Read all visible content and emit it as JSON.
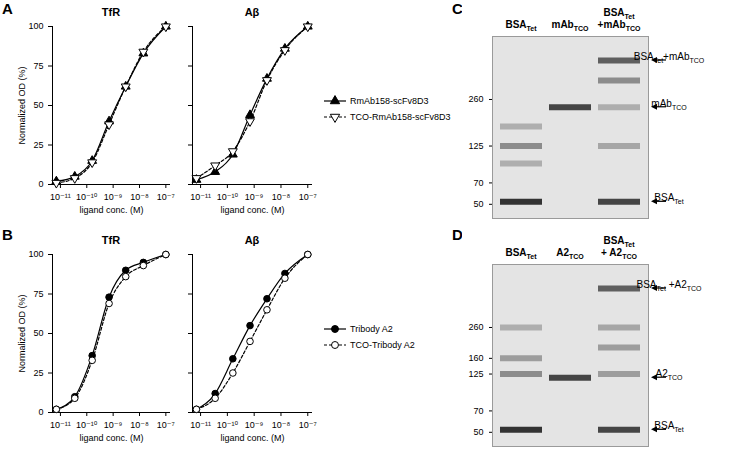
{
  "panel_labels": [
    "A",
    "B",
    "C",
    "D"
  ],
  "chart_data": [
    {
      "type": "line",
      "title": "TfR",
      "x_label": "ligand conc. (M)",
      "y_label": "Normalized OD (%)",
      "log": "x",
      "xlim": [
        5e-12,
        1.5e-07
      ],
      "xticks": [
        {
          "value": 1e-11,
          "label": "10⁻¹¹"
        },
        {
          "value": 1e-10,
          "label": "10⁻¹⁰"
        },
        {
          "value": 1e-09,
          "label": "10⁻⁹"
        },
        {
          "value": 1e-08,
          "label": "10⁻⁸"
        },
        {
          "value": 1e-07,
          "label": "10⁻⁷"
        }
      ],
      "ylim": [
        0,
        100
      ],
      "yticks": [
        0,
        25,
        50,
        75,
        100
      ],
      "grid": false,
      "legend": false,
      "x": [
        7e-12,
        3.5e-11,
        1.6e-10,
        7e-10,
        3e-09,
        1.4e-08,
        1e-07
      ],
      "series": [
        {
          "name": "RmAb158-scFv8D3",
          "color": "#000000",
          "marker": "filled-triangle",
          "line_style": "solid",
          "values": [
            2,
            5,
            15,
            40,
            62,
            83,
            100
          ]
        },
        {
          "name": "TCO-RmAb158-scFv8D3",
          "color": "#000000",
          "marker": "open-triangle-down",
          "line_style": "dashed",
          "values": [
            1,
            4,
            14,
            38,
            62,
            84,
            100
          ]
        }
      ]
    },
    {
      "type": "line",
      "title": "Aβ",
      "x_label": "ligand conc. (M)",
      "log": "x",
      "xlim": [
        5e-12,
        1.5e-07
      ],
      "xticks": [
        {
          "value": 1e-11,
          "label": "10⁻¹¹"
        },
        {
          "value": 1e-10,
          "label": "10⁻¹⁰"
        },
        {
          "value": 1e-09,
          "label": "10⁻⁹"
        },
        {
          "value": 1e-08,
          "label": "10⁻⁸"
        },
        {
          "value": 1e-07,
          "label": "10⁻⁷"
        }
      ],
      "ylim": [
        0,
        100
      ],
      "yticks": [
        0,
        25,
        50,
        75,
        100
      ],
      "grid": false,
      "legend": "right",
      "tick_labels": "x",
      "x": [
        7e-12,
        3.5e-11,
        1.6e-10,
        7e-10,
        3e-09,
        1.4e-08,
        1e-07
      ],
      "series": [
        {
          "name": "RmAb158-scFv8D3",
          "color": "#000000",
          "marker": "filled-triangle",
          "line_style": "solid",
          "values": [
            3,
            8,
            19,
            44,
            67,
            86,
            100
          ]
        },
        {
          "name": "TCO-RmAb158-scFv8D3",
          "color": "#000000",
          "marker": "open-triangle-down",
          "line_style": "dashed",
          "values": [
            4,
            12,
            21,
            40,
            66,
            85,
            100
          ]
        }
      ]
    },
    {
      "type": "line",
      "title": "TfR",
      "x_label": "ligand conc. (M)",
      "y_label": "Normalized OD (%)",
      "log": "x",
      "xlim": [
        5e-12,
        1.5e-07
      ],
      "xticks": [
        {
          "value": 1e-11,
          "label": "10⁻¹¹"
        },
        {
          "value": 1e-10,
          "label": "10⁻¹⁰"
        },
        {
          "value": 1e-09,
          "label": "10⁻⁹"
        },
        {
          "value": 1e-08,
          "label": "10⁻⁸"
        },
        {
          "value": 1e-07,
          "label": "10⁻⁷"
        }
      ],
      "ylim": [
        0,
        100
      ],
      "yticks": [
        0,
        25,
        50,
        75,
        100
      ],
      "grid": false,
      "legend": false,
      "x": [
        7e-12,
        3.5e-11,
        1.6e-10,
        7e-10,
        3e-09,
        1.4e-08,
        1e-07
      ],
      "series": [
        {
          "name": "Tribody A2",
          "color": "#000000",
          "marker": "filled-circle",
          "line_style": "solid",
          "values": [
            2,
            10,
            36,
            73,
            90,
            95,
            100
          ]
        },
        {
          "name": "TCO-Tribody A2",
          "color": "#000000",
          "marker": "open-circle",
          "line_style": "dashed",
          "values": [
            2,
            9,
            33,
            69,
            86,
            93,
            100
          ]
        }
      ]
    },
    {
      "type": "line",
      "title": "Aβ",
      "x_label": "ligand conc. (M)",
      "log": "x",
      "xlim": [
        5e-12,
        1.5e-07
      ],
      "xticks": [
        {
          "value": 1e-11,
          "label": "10⁻¹¹"
        },
        {
          "value": 1e-10,
          "label": "10⁻¹⁰"
        },
        {
          "value": 1e-09,
          "label": "10⁻⁹"
        },
        {
          "value": 1e-08,
          "label": "10⁻⁸"
        },
        {
          "value": 1e-07,
          "label": "10⁻⁷"
        }
      ],
      "ylim": [
        0,
        100
      ],
      "yticks": [
        0,
        25,
        50,
        75,
        100
      ],
      "grid": false,
      "legend": "right",
      "tick_labels": "x",
      "x": [
        7e-12,
        3.5e-11,
        1.6e-10,
        7e-10,
        3e-09,
        1.4e-08,
        1e-07
      ],
      "series": [
        {
          "name": "Tribody A2",
          "color": "#000000",
          "marker": "filled-circle",
          "line_style": "solid",
          "values": [
            2,
            12,
            34,
            55,
            72,
            88,
            100
          ]
        },
        {
          "name": "TCO-Tribody A2",
          "color": "#000000",
          "marker": "open-circle",
          "line_style": "dashed",
          "values": [
            2,
            9,
            25,
            45,
            65,
            85,
            100
          ]
        }
      ]
    },
    {
      "type": "gel",
      "log": "y",
      "ylim": [
        40,
        700
      ],
      "yticks": [
        260,
        125,
        70,
        50
      ],
      "color": "#333333",
      "categories": [
        [
          [
            {
              "text": "BSA"
            },
            {
              "sub": "Tet"
            }
          ]
        ],
        [
          [
            {
              "text": "mAb"
            },
            {
              "sub": "TCO"
            }
          ]
        ],
        [
          [
            {
              "text": "BSA"
            },
            {
              "sub": "Tet"
            }
          ],
          [
            {
              "text": "+mAb"
            },
            {
              "sub": "TCO"
            }
          ]
        ]
      ],
      "bands": [
        {
          "lane": 0,
          "kda": 52,
          "strength": 1
        },
        {
          "lane": 0,
          "kda": 95,
          "strength": 0.3
        },
        {
          "lane": 0,
          "kda": 125,
          "strength": 0.5
        },
        {
          "lane": 0,
          "kda": 170,
          "strength": 0.3
        },
        {
          "lane": 1,
          "kda": 230,
          "strength": 0.9
        },
        {
          "lane": 2,
          "kda": 52,
          "strength": 0.9
        },
        {
          "lane": 2,
          "kda": 125,
          "strength": 0.35
        },
        {
          "lane": 2,
          "kda": 230,
          "strength": 0.3
        },
        {
          "lane": 2,
          "kda": 350,
          "strength": 0.5
        },
        {
          "lane": 2,
          "kda": 480,
          "strength": 0.75
        }
      ],
      "annotations": [
        {
          "kda": 480,
          "text": [
            {
              "text": "BSA"
            },
            {
              "sub": "Tet"
            },
            {
              "text": "+mAb"
            },
            {
              "sub": "TCO"
            }
          ]
        },
        {
          "kda": 230,
          "text": [
            {
              "text": "mAb"
            },
            {
              "sub": "TCO"
            }
          ]
        },
        {
          "kda": 52,
          "text": [
            {
              "text": "BSA"
            },
            {
              "sub": "Tet"
            }
          ]
        }
      ]
    },
    {
      "type": "gel",
      "log": "y",
      "ylim": [
        40,
        700
      ],
      "yticks": [
        260,
        160,
        125,
        70,
        50
      ],
      "color": "#333333",
      "categories": [
        [
          [
            {
              "text": "BSA"
            },
            {
              "sub": "Tet"
            }
          ]
        ],
        [
          [
            {
              "text": "A2"
            },
            {
              "sub": "TCO"
            }
          ]
        ],
        [
          [
            {
              "text": "BSA"
            },
            {
              "sub": "Tet"
            }
          ],
          [
            {
              "text": "+ A2"
            },
            {
              "sub": "TCO"
            }
          ]
        ]
      ],
      "bands": [
        {
          "lane": 0,
          "kda": 52,
          "strength": 1
        },
        {
          "lane": 0,
          "kda": 125,
          "strength": 0.5
        },
        {
          "lane": 0,
          "kda": 160,
          "strength": 0.4
        },
        {
          "lane": 0,
          "kda": 260,
          "strength": 0.3
        },
        {
          "lane": 1,
          "kda": 118,
          "strength": 0.9
        },
        {
          "lane": 2,
          "kda": 52,
          "strength": 0.9
        },
        {
          "lane": 2,
          "kda": 125,
          "strength": 0.4
        },
        {
          "lane": 2,
          "kda": 190,
          "strength": 0.4
        },
        {
          "lane": 2,
          "kda": 260,
          "strength": 0.35
        },
        {
          "lane": 2,
          "kda": 480,
          "strength": 0.75
        }
      ],
      "annotations": [
        {
          "kda": 480,
          "text": [
            {
              "text": "BSA"
            },
            {
              "sub": "Tet"
            },
            {
              "text": " +A2"
            },
            {
              "sub": "TCO"
            }
          ]
        },
        {
          "kda": 118,
          "text": [
            {
              "text": "A2"
            },
            {
              "sub": "TCO"
            }
          ]
        },
        {
          "kda": 52,
          "text": [
            {
              "text": "BSA"
            },
            {
              "sub": "Tet"
            }
          ]
        }
      ]
    }
  ]
}
